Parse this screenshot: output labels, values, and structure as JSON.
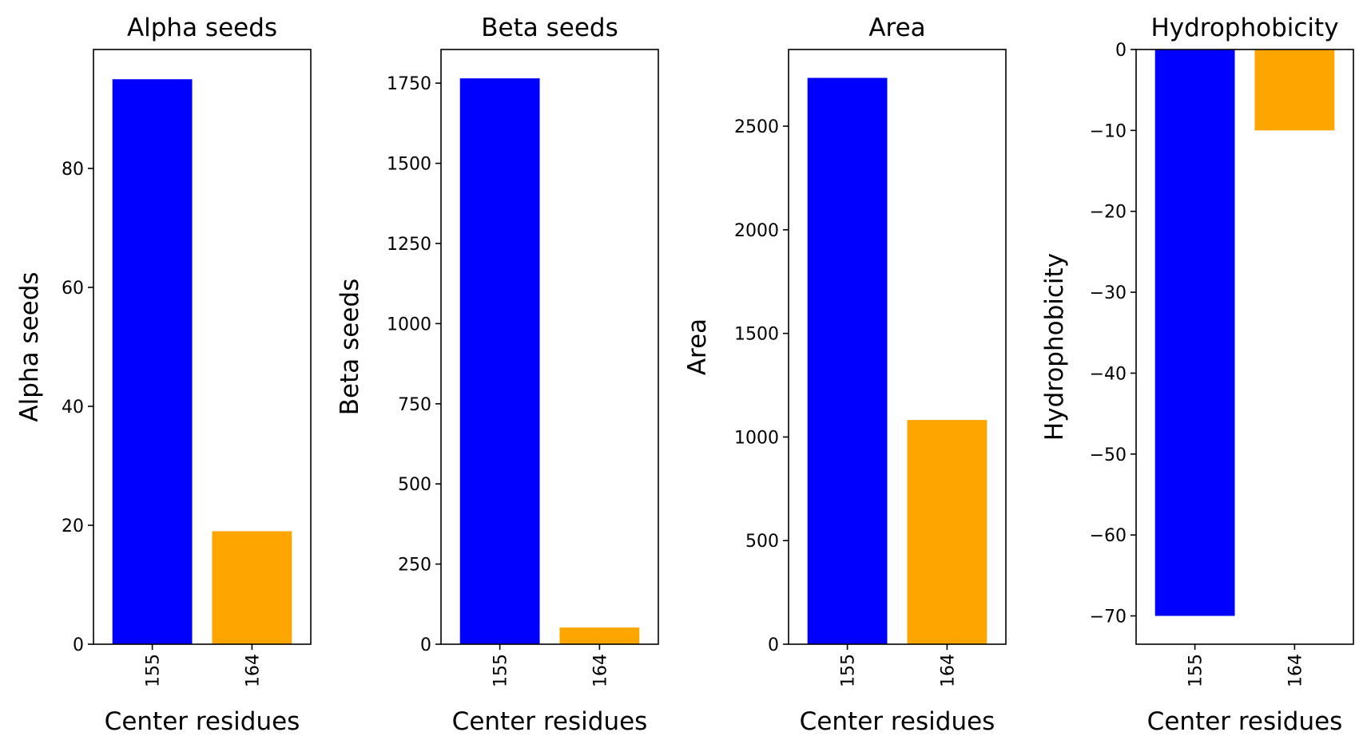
{
  "chart_data": [
    {
      "type": "bar",
      "title": "Alpha seeds",
      "xlabel": "Center residues",
      "ylabel": "Alpha seeds",
      "categories": [
        "155",
        "164"
      ],
      "values": [
        95,
        19
      ],
      "colors": [
        "#0000ff",
        "#ffa500"
      ],
      "ylim": [
        0,
        100
      ],
      "yticks": [
        0,
        20,
        40,
        60,
        80
      ],
      "ytick_labels": [
        "0",
        "20",
        "40",
        "60",
        "80"
      ],
      "grid": false
    },
    {
      "type": "bar",
      "title": "Beta seeds",
      "xlabel": "Center residues",
      "ylabel": "Beta seeds",
      "categories": [
        "155",
        "164"
      ],
      "values": [
        1765,
        52
      ],
      "colors": [
        "#0000ff",
        "#ffa500"
      ],
      "ylim": [
        0,
        1855
      ],
      "yticks": [
        0,
        250,
        500,
        750,
        1000,
        1250,
        1500,
        1750
      ],
      "ytick_labels": [
        "0",
        "250",
        "500",
        "750",
        "1000",
        "1250",
        "1500",
        "1750"
      ],
      "grid": false
    },
    {
      "type": "bar",
      "title": "Area",
      "xlabel": "Center residues",
      "ylabel": "Area",
      "categories": [
        "155",
        "164"
      ],
      "values": [
        2733,
        1082
      ],
      "colors": [
        "#0000ff",
        "#ffa500"
      ],
      "ylim": [
        0,
        2870
      ],
      "yticks": [
        0,
        500,
        1000,
        1500,
        2000,
        2500
      ],
      "ytick_labels": [
        "0",
        "500",
        "1000",
        "1500",
        "2000",
        "2500"
      ],
      "grid": false
    },
    {
      "type": "bar",
      "title": "Hydrophobicity",
      "xlabel": "Center residues",
      "ylabel": "Hydrophobicity",
      "categories": [
        "155",
        "164"
      ],
      "values": [
        -70,
        -10
      ],
      "colors": [
        "#0000ff",
        "#ffa500"
      ],
      "ylim": [
        -73.5,
        0
      ],
      "yticks": [
        0,
        -10,
        -20,
        -30,
        -40,
        -50,
        -60,
        -70
      ],
      "ytick_labels": [
        "0",
        "−10",
        "−20",
        "−30",
        "−40",
        "−50",
        "−60",
        "−70"
      ],
      "grid": false
    }
  ]
}
